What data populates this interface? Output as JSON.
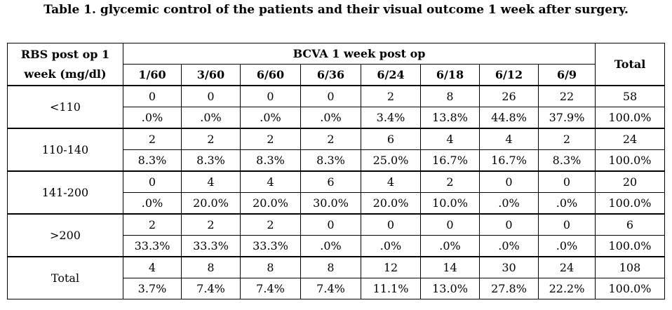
{
  "caption": "Table 1. glycemic control of the patients and their visual outcome 1 week after surgery.",
  "header": {
    "row_header": "RBS post op 1 week (mg/dl)",
    "group_header": "BCVA 1 week post op",
    "total_header": "Total",
    "columns": [
      "1/60",
      "3/60",
      "6/60",
      "6/36",
      "6/24",
      "6/18",
      "6/12",
      "6/9"
    ]
  },
  "rows": [
    {
      "label": "<110",
      "counts": [
        "0",
        "0",
        "0",
        "0",
        "2",
        "8",
        "26",
        "22",
        "58"
      ],
      "percents": [
        ".0%",
        ".0%",
        ".0%",
        ".0%",
        "3.4%",
        "13.8%",
        "44.8%",
        "37.9%",
        "100.0%"
      ]
    },
    {
      "label": "110-140",
      "counts": [
        "2",
        "2",
        "2",
        "2",
        "6",
        "4",
        "4",
        "2",
        "24"
      ],
      "percents": [
        "8.3%",
        "8.3%",
        "8.3%",
        "8.3%",
        "25.0%",
        "16.7%",
        "16.7%",
        "8.3%",
        "100.0%"
      ]
    },
    {
      "label": "141-200",
      "counts": [
        "0",
        "4",
        "4",
        "6",
        "4",
        "2",
        "0",
        "0",
        "20"
      ],
      "percents": [
        ".0%",
        "20.0%",
        "20.0%",
        "30.0%",
        "20.0%",
        "10.0%",
        ".0%",
        ".0%",
        "100.0%"
      ]
    },
    {
      "label": ">200",
      "counts": [
        "2",
        "2",
        "2",
        "0",
        "0",
        "0",
        "0",
        "0",
        "6"
      ],
      "percents": [
        "33.3%",
        "33.3%",
        "33.3%",
        ".0%",
        ".0%",
        ".0%",
        ".0%",
        ".0%",
        "100.0%"
      ]
    },
    {
      "label": "Total",
      "counts": [
        "4",
        "8",
        "8",
        "8",
        "12",
        "14",
        "30",
        "24",
        "108"
      ],
      "percents": [
        "3.7%",
        "7.4%",
        "7.4%",
        "7.4%",
        "11.1%",
        "13.0%",
        "27.8%",
        "22.2%",
        "100.0%"
      ]
    }
  ]
}
